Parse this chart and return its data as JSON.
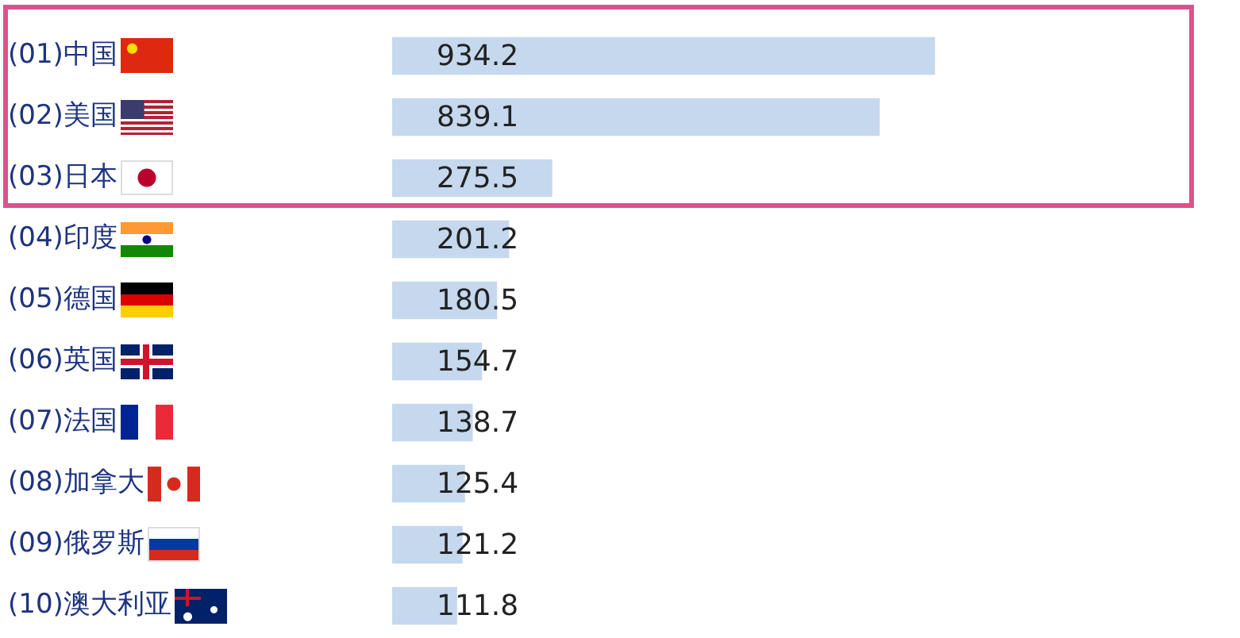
{
  "chart_data": {
    "type": "bar",
    "orientation": "horizontal",
    "categories": [
      "(01)中国",
      "(02)美国",
      "(03)日本",
      "(04)印度",
      "(05)德国",
      "(06)英国",
      "(07)法国",
      "(08)加拿大",
      "(09)俄罗斯",
      "(10)澳大利亚"
    ],
    "values": [
      934.2,
      839.1,
      275.5,
      201.2,
      180.5,
      154.7,
      138.7,
      125.4,
      121.2,
      111.8
    ],
    "color": "#c5d8ee",
    "data_labels": true
  }
}
